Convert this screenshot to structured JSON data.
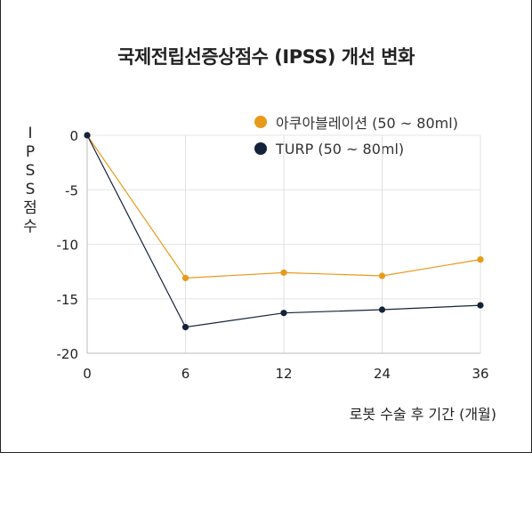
{
  "chart_data": {
    "type": "line",
    "title": "국제전립선증상점수 (IPSS) 개선 변화",
    "ylabel": "IPSS점수",
    "xlabel": "로봇 수술 후 기간 (개월)",
    "categories": [
      "0",
      "6",
      "12",
      "24",
      "36"
    ],
    "ylim": [
      -20,
      0
    ],
    "yticks": [
      0,
      -5,
      -10,
      -15,
      -20
    ],
    "grid": "vertical",
    "legend_position": "top-right",
    "series": [
      {
        "name": "아쿠아블레이션 (50 ~ 80ml)",
        "color": "#E89A1B",
        "values": [
          0,
          -13.1,
          -12.6,
          -12.9,
          -11.4
        ]
      },
      {
        "name": "TURP (50 ~ 80ml)",
        "color": "#14233A",
        "values": [
          0,
          -17.6,
          -16.3,
          -16.0,
          -15.6
        ]
      }
    ]
  }
}
